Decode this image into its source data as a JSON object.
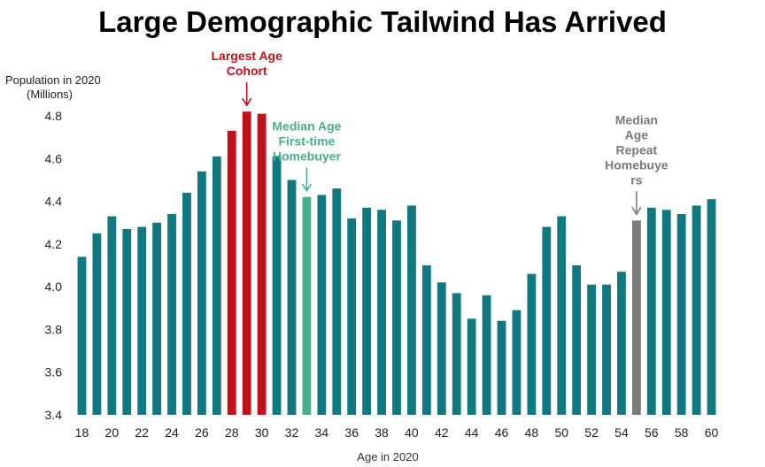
{
  "chart_data": {
    "type": "bar",
    "title": "Large Demographic Tailwind Has Arrived",
    "ylabel": [
      "Population in 2020",
      "(Millions)"
    ],
    "xlabel": "Age in 2020",
    "ylim": [
      3.4,
      4.8
    ],
    "yticks": [
      "3.4",
      "3.6",
      "3.8",
      "4.0",
      "4.2",
      "4.4",
      "4.6",
      "4.8"
    ],
    "xticks": [
      "18",
      "20",
      "22",
      "24",
      "26",
      "28",
      "30",
      "32",
      "34",
      "36",
      "38",
      "40",
      "42",
      "44",
      "46",
      "48",
      "50",
      "52",
      "54",
      "56",
      "58",
      "60"
    ],
    "categories": [
      18,
      19,
      20,
      21,
      22,
      23,
      24,
      25,
      26,
      27,
      28,
      29,
      30,
      31,
      32,
      33,
      34,
      35,
      36,
      37,
      38,
      39,
      40,
      41,
      42,
      43,
      44,
      45,
      46,
      47,
      48,
      49,
      50,
      51,
      52,
      53,
      54,
      55,
      56,
      57,
      58,
      59,
      60
    ],
    "values": [
      4.14,
      4.25,
      4.33,
      4.27,
      4.28,
      4.3,
      4.34,
      4.44,
      4.54,
      4.61,
      4.73,
      4.82,
      4.81,
      4.61,
      4.5,
      4.42,
      4.43,
      4.46,
      4.32,
      4.37,
      4.36,
      4.31,
      4.38,
      4.1,
      4.02,
      3.97,
      3.85,
      3.96,
      3.84,
      3.89,
      4.06,
      4.28,
      4.33,
      4.1,
      4.01,
      4.01,
      4.07,
      4.31,
      4.37,
      4.36,
      4.34,
      4.38,
      4.41
    ],
    "grid": false,
    "colors": {
      "default": "#127880",
      "largest_cohort": "#C0121A",
      "first_time": "#4AAE8C",
      "repeat": "#7A7A7A"
    },
    "highlights": [
      {
        "key": "largest_cohort",
        "ages": [
          28,
          29,
          30
        ],
        "label_lines": [
          "Largest Age",
          "Cohort"
        ],
        "arrow_age": 29
      },
      {
        "key": "first_time",
        "ages": [
          33
        ],
        "label_lines": [
          "Median Age",
          "First-time",
          "Homebuyer"
        ],
        "arrow_age": 33
      },
      {
        "key": "repeat",
        "ages": [
          55
        ],
        "label_lines": [
          "Median",
          "Age",
          "Repeat",
          "Homebuye",
          "rs"
        ],
        "arrow_age": 55
      }
    ]
  }
}
